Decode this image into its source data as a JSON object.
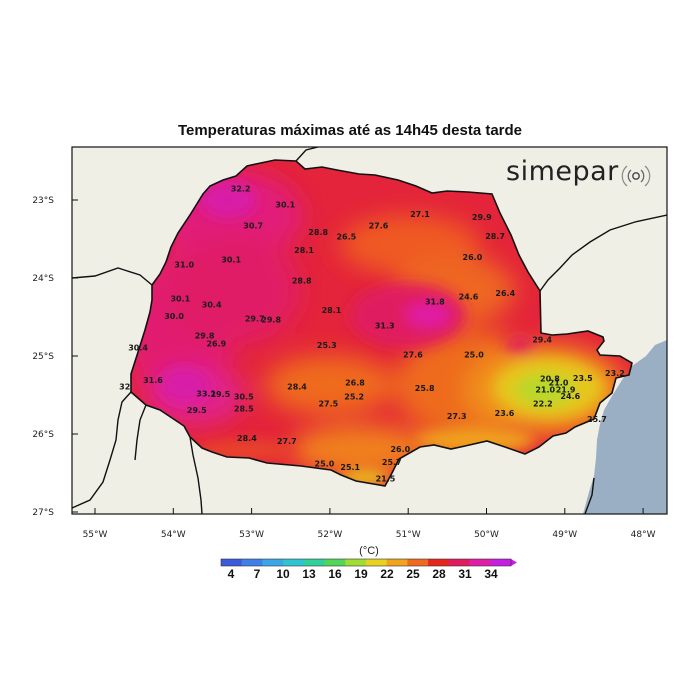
{
  "title": "Temperaturas máximas até as 14h45 desta tarde",
  "brand": "simepar",
  "brand_icon": "signal-waves-icon",
  "colorbar": {
    "unit": "(°C)",
    "ticks": [
      "4",
      "7",
      "10",
      "13",
      "16",
      "19",
      "22",
      "25",
      "28",
      "31",
      "34"
    ],
    "colors": [
      "#3b5bdb",
      "#3f7fe8",
      "#3aa6e6",
      "#2fc4cf",
      "#2fd09a",
      "#52d65a",
      "#9fdc36",
      "#e6d21f",
      "#f2a21e",
      "#ee6a1e",
      "#e4261e",
      "#e01c5c",
      "#e01ca8",
      "#c51ee0"
    ]
  },
  "axes": {
    "lat_labels": [
      "23°S",
      "24°S",
      "25°S",
      "26°S",
      "27°S"
    ],
    "lon_labels": [
      "55°W",
      "54°W",
      "53°W",
      "52°W",
      "51°W",
      "50°W",
      "49°W",
      "48°W"
    ]
  },
  "colors": {
    "sea": "#9aafc4",
    "land": "#f0efe6",
    "border": "#111111"
  },
  "stations": [
    {
      "lon": -53.14,
      "lat": -22.85,
      "value": "32.2"
    },
    {
      "lon": -52.57,
      "lat": -23.06,
      "value": "30.1"
    },
    {
      "lon": -52.98,
      "lat": -23.33,
      "value": "30.7"
    },
    {
      "lon": -53.86,
      "lat": -23.83,
      "value": "31.0"
    },
    {
      "lon": -53.26,
      "lat": -23.76,
      "value": "30.1"
    },
    {
      "lon": -52.33,
      "lat": -23.64,
      "value": "28.1"
    },
    {
      "lon": -52.15,
      "lat": -23.41,
      "value": "28.8"
    },
    {
      "lon": -51.79,
      "lat": -23.47,
      "value": "26.5"
    },
    {
      "lon": -51.38,
      "lat": -23.33,
      "value": "27.6"
    },
    {
      "lon": -50.85,
      "lat": -23.18,
      "value": "27.1"
    },
    {
      "lon": -50.06,
      "lat": -23.22,
      "value": "29.9"
    },
    {
      "lon": -49.89,
      "lat": -23.46,
      "value": "28.7"
    },
    {
      "lon": -50.18,
      "lat": -23.73,
      "value": "26.0"
    },
    {
      "lon": -52.36,
      "lat": -24.03,
      "value": "28.8"
    },
    {
      "lon": -53.91,
      "lat": -24.26,
      "value": "30.1"
    },
    {
      "lon": -53.51,
      "lat": -24.34,
      "value": "30.4"
    },
    {
      "lon": -53.99,
      "lat": -24.49,
      "value": "30.0"
    },
    {
      "lon": -52.96,
      "lat": -24.52,
      "value": "29.7"
    },
    {
      "lon": -52.75,
      "lat": -24.53,
      "value": "29.8"
    },
    {
      "lon": -51.98,
      "lat": -24.41,
      "value": "28.1"
    },
    {
      "lon": -50.66,
      "lat": -24.3,
      "value": "31.8"
    },
    {
      "lon": -50.23,
      "lat": -24.24,
      "value": "24.6"
    },
    {
      "lon": -49.76,
      "lat": -24.19,
      "value": "26.4"
    },
    {
      "lon": -51.3,
      "lat": -24.61,
      "value": "31.3"
    },
    {
      "lon": -53.6,
      "lat": -24.74,
      "value": "29.8"
    },
    {
      "lon": -53.45,
      "lat": -24.84,
      "value": "26.9"
    },
    {
      "lon": -54.45,
      "lat": -24.89,
      "value": "30.4"
    },
    {
      "lon": -52.04,
      "lat": -24.86,
      "value": "25.3"
    },
    {
      "lon": -50.94,
      "lat": -24.98,
      "value": "27.6"
    },
    {
      "lon": -50.16,
      "lat": -24.98,
      "value": "25.0"
    },
    {
      "lon": -49.29,
      "lat": -24.79,
      "value": "29.4"
    },
    {
      "lon": -54.26,
      "lat": -25.31,
      "value": "31.6"
    },
    {
      "lon": -54.62,
      "lat": -25.39,
      "value": "32"
    },
    {
      "lon": -53.58,
      "lat": -25.48,
      "value": "33.1"
    },
    {
      "lon": -53.4,
      "lat": -25.49,
      "value": "29.5"
    },
    {
      "lon": -53.1,
      "lat": -25.52,
      "value": "30.5"
    },
    {
      "lon": -52.42,
      "lat": -25.39,
      "value": "28.4"
    },
    {
      "lon": -51.68,
      "lat": -25.34,
      "value": "26.8"
    },
    {
      "lon": -51.69,
      "lat": -25.52,
      "value": "25.2"
    },
    {
      "lon": -52.02,
      "lat": -25.61,
      "value": "27.5"
    },
    {
      "lon": -50.79,
      "lat": -25.41,
      "value": "25.8"
    },
    {
      "lon": -53.7,
      "lat": -25.69,
      "value": "29.5"
    },
    {
      "lon": -53.1,
      "lat": -25.67,
      "value": "28.5"
    },
    {
      "lon": -49.19,
      "lat": -25.29,
      "value": "20.8"
    },
    {
      "lon": -49.08,
      "lat": -25.34,
      "value": "21.0"
    },
    {
      "lon": -49.25,
      "lat": -25.43,
      "value": "21.0"
    },
    {
      "lon": -48.99,
      "lat": -25.43,
      "value": "21.9"
    },
    {
      "lon": -48.77,
      "lat": -25.28,
      "value": "23.5"
    },
    {
      "lon": -48.36,
      "lat": -25.22,
      "value": "23.2"
    },
    {
      "lon": -48.93,
      "lat": -25.51,
      "value": "24.6"
    },
    {
      "lon": -49.28,
      "lat": -25.61,
      "value": "22.2"
    },
    {
      "lon": -49.77,
      "lat": -25.73,
      "value": "23.6"
    },
    {
      "lon": -50.38,
      "lat": -25.77,
      "value": "27.3"
    },
    {
      "lon": -48.59,
      "lat": -25.81,
      "value": "25.7"
    },
    {
      "lon": -53.06,
      "lat": -26.05,
      "value": "28.4"
    },
    {
      "lon": -52.55,
      "lat": -26.09,
      "value": "27.7"
    },
    {
      "lon": -51.1,
      "lat": -26.19,
      "value": "26.0"
    },
    {
      "lon": -52.07,
      "lat": -26.38,
      "value": "25.0"
    },
    {
      "lon": -51.74,
      "lat": -26.42,
      "value": "25.1"
    },
    {
      "lon": -51.21,
      "lat": -26.36,
      "value": "25.7"
    },
    {
      "lon": -51.29,
      "lat": -26.57,
      "value": "21.5"
    }
  ]
}
